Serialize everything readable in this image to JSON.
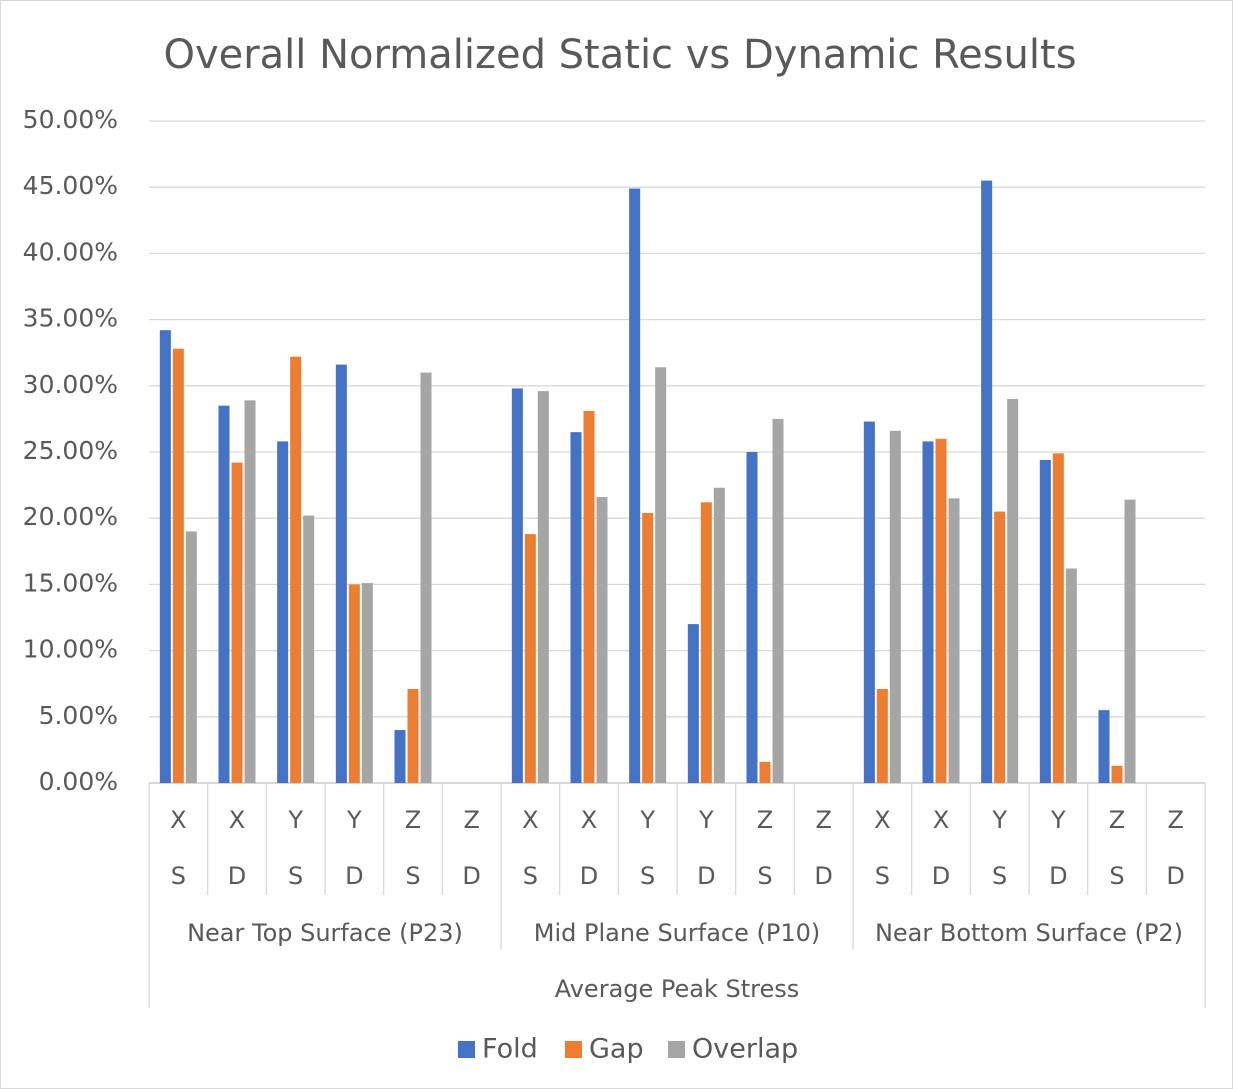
{
  "chart_data": {
    "type": "bar",
    "title": "Overall Normalized Static vs Dynamic Results",
    "categories": [
      "X",
      "X",
      "Y",
      "Y",
      "Z",
      "Z",
      "X",
      "X",
      "Y",
      "Y",
      "Z",
      "Z",
      "X",
      "X",
      "Y",
      "Y",
      "Z",
      "Z"
    ],
    "subcategories": [
      "S",
      "D",
      "S",
      "D",
      "S",
      "D",
      "S",
      "D",
      "S",
      "D",
      "S",
      "D",
      "S",
      "D",
      "S",
      "D",
      "S",
      "D"
    ],
    "groups": [
      "Near  Top Surface (P23)",
      "Mid Plane Surface (P10)",
      "Near Bottom Surface (P2)"
    ],
    "x_label": "Average Peak Stress",
    "series": [
      {
        "name": "Fold",
        "color": "#4472c4",
        "values": [
          34.2,
          28.5,
          25.8,
          31.6,
          4.0,
          null,
          29.8,
          26.5,
          44.9,
          12.0,
          25.0,
          null,
          27.3,
          25.8,
          45.5,
          24.4,
          5.5,
          null
        ]
      },
      {
        "name": "Gap",
        "color": "#ed7d31",
        "values": [
          32.8,
          24.2,
          32.2,
          15.0,
          7.1,
          null,
          18.8,
          28.1,
          20.4,
          21.2,
          1.6,
          null,
          7.1,
          26.0,
          20.5,
          24.9,
          1.3,
          null
        ]
      },
      {
        "name": "Overlap",
        "color": "#a5a5a5",
        "values": [
          19.0,
          28.9,
          20.2,
          15.1,
          31.0,
          null,
          29.6,
          21.6,
          31.4,
          22.3,
          27.5,
          null,
          26.6,
          21.5,
          29.0,
          16.2,
          21.4,
          null
        ]
      }
    ],
    "ylim": [
      0,
      50
    ],
    "yticks": [
      {
        "value": 0,
        "label": "0.00%"
      },
      {
        "value": 5,
        "label": "5.00%"
      },
      {
        "value": 10,
        "label": "10.00%"
      },
      {
        "value": 15,
        "label": "15.00%"
      },
      {
        "value": 20,
        "label": "20.00%"
      },
      {
        "value": 25,
        "label": "25.00%"
      },
      {
        "value": 30,
        "label": "30.00%"
      },
      {
        "value": 35,
        "label": "35.00%"
      },
      {
        "value": 40,
        "label": "40.00%"
      },
      {
        "value": 45,
        "label": "45.00%"
      },
      {
        "value": 50,
        "label": "50.00%"
      }
    ],
    "grid": true,
    "legend": "bottom"
  }
}
